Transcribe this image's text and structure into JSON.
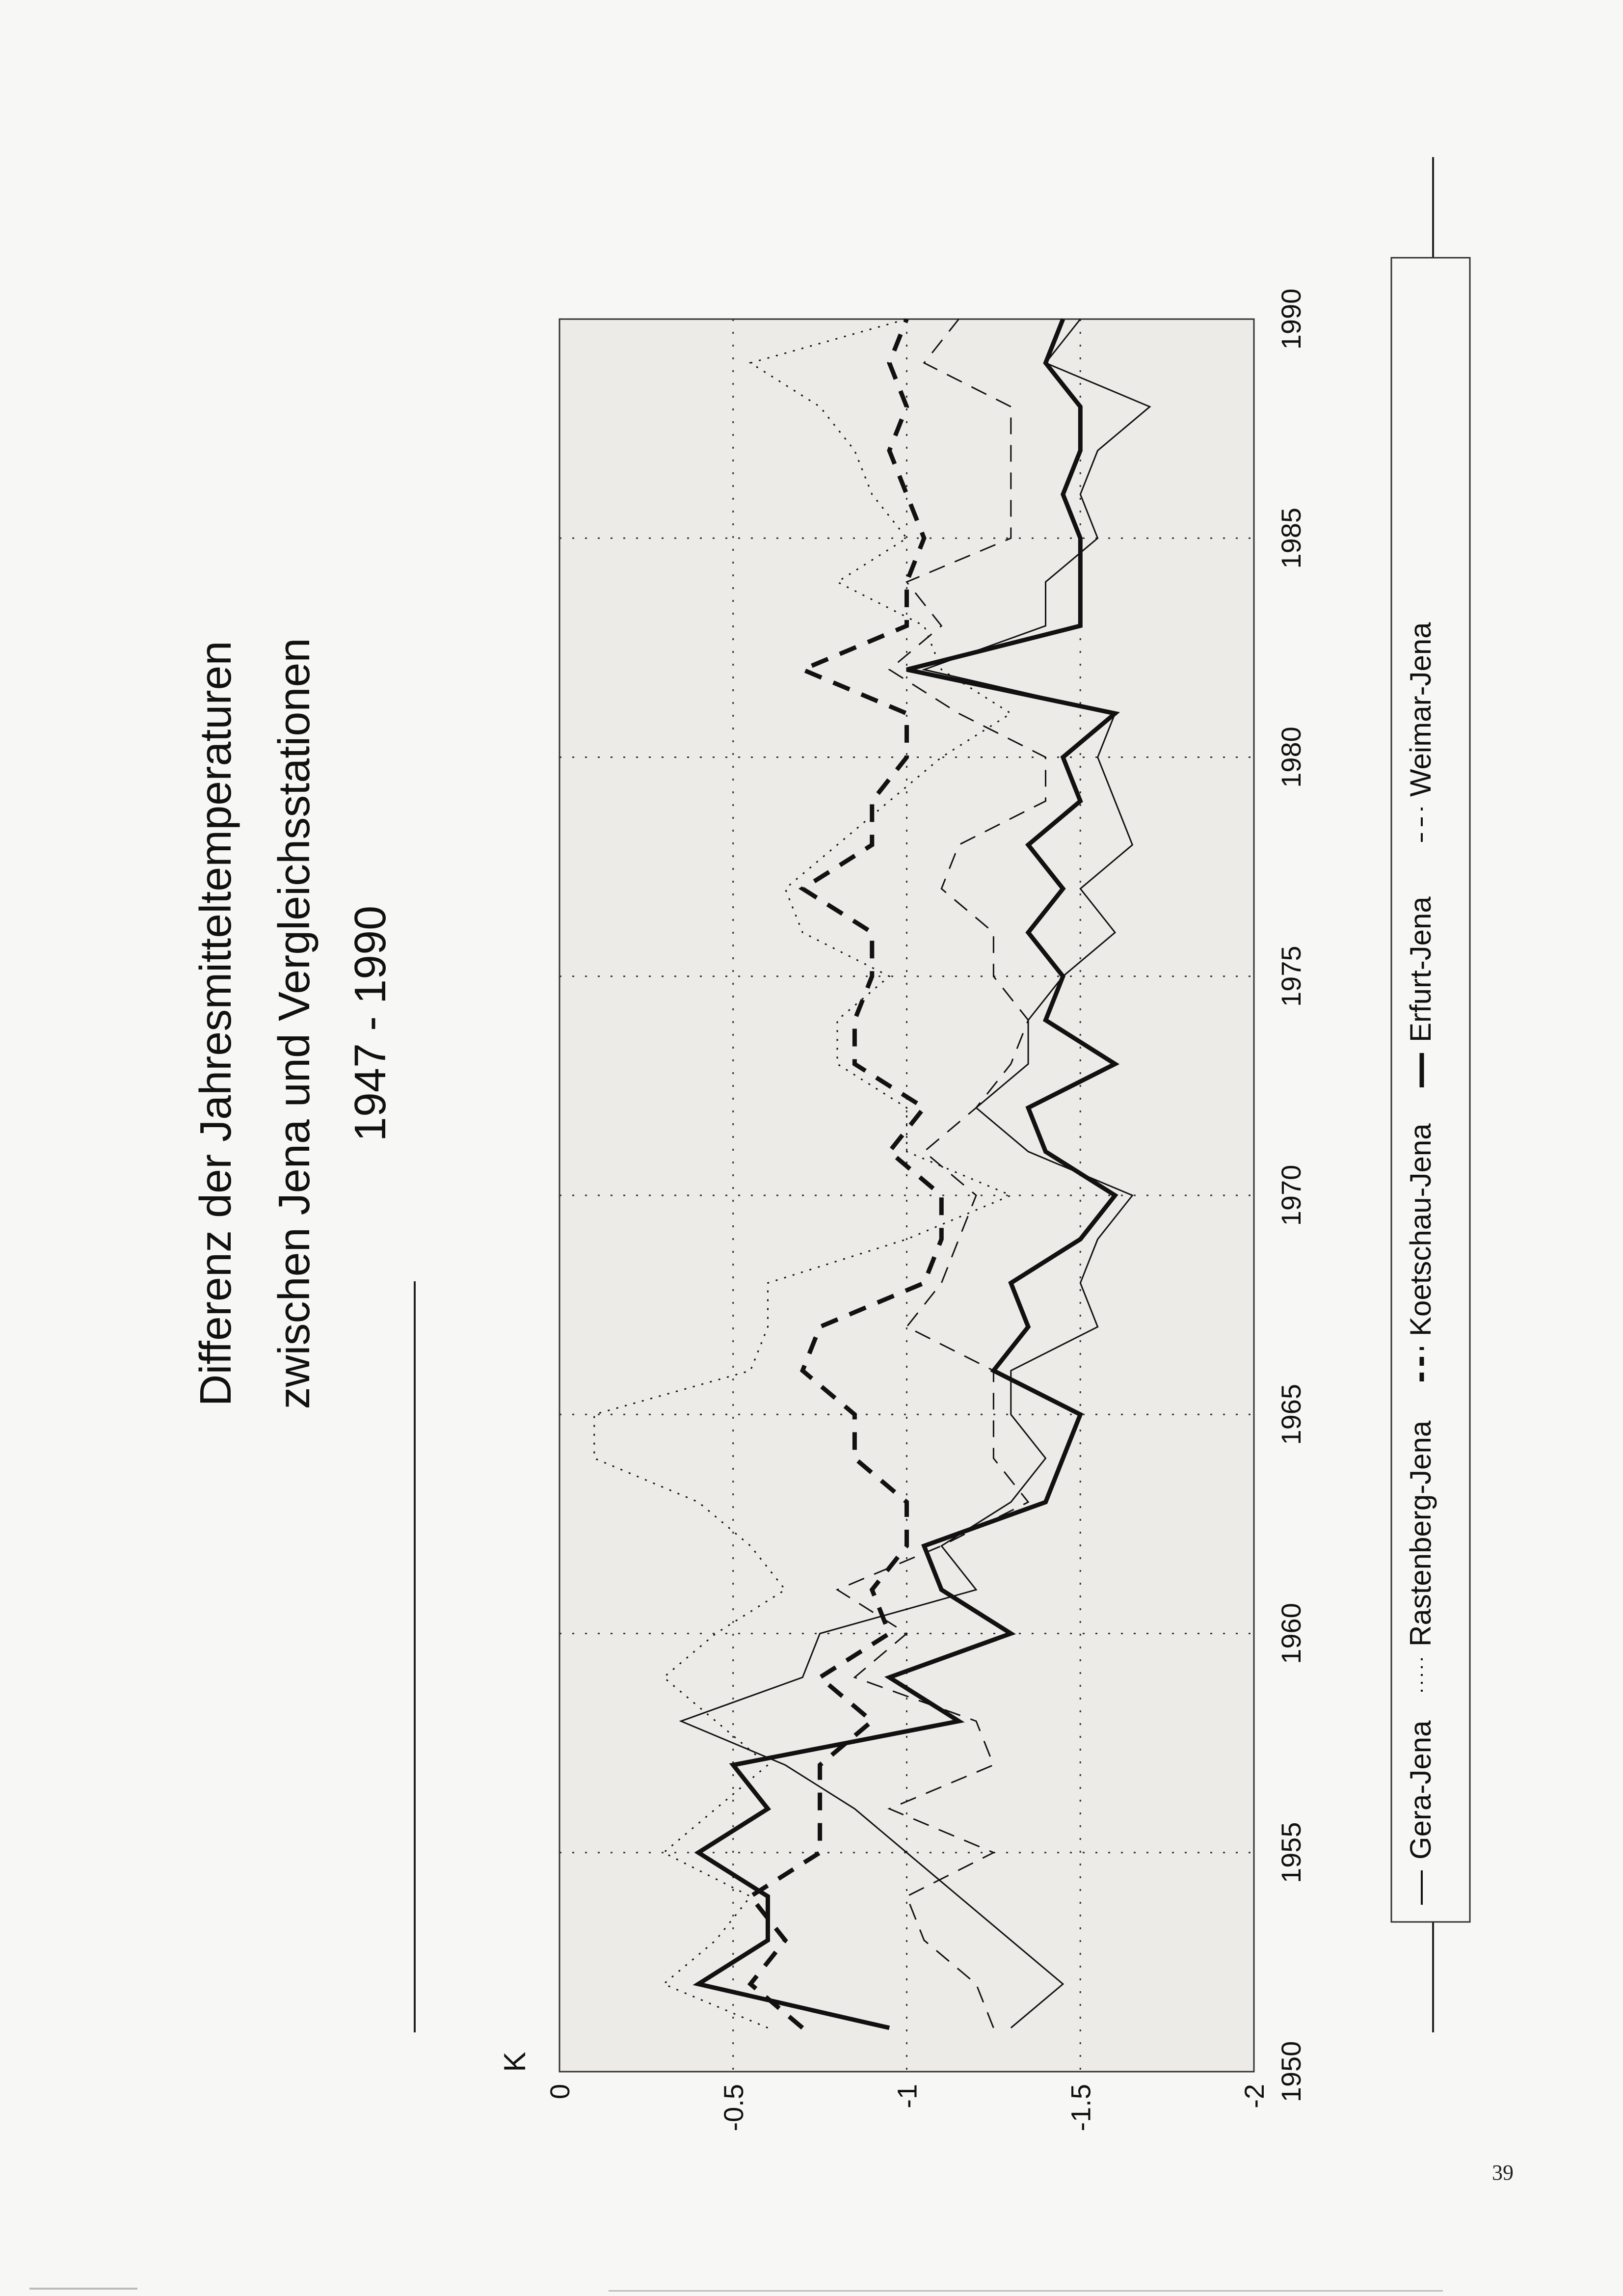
{
  "page": {
    "number": "39"
  },
  "chart_data": {
    "type": "line",
    "orientation": "rotated-90-ccw",
    "title_lines": [
      "Differenz der Jahresmitteltemperaturen",
      "zwischen Jena und Vergleichsstationen",
      "1947 - 1990"
    ],
    "ylabel": "K",
    "xlim": [
      1950,
      1990
    ],
    "ylim": [
      -2,
      0
    ],
    "x_ticks": [
      "1950",
      "1955",
      "1960",
      "1965",
      "1970",
      "1975",
      "1980",
      "1985",
      "1990"
    ],
    "y_ticks": [
      "0",
      "-0.5",
      "-1",
      "-1.5",
      "-2"
    ],
    "grid": "dotted",
    "legend_position": "bottom",
    "series": [
      {
        "name": "Gera-Jena",
        "style": "solid-thin",
        "x": [
          1951,
          1952,
          1953,
          1954,
          1955,
          1956,
          1957,
          1958,
          1959,
          1960,
          1961,
          1962,
          1963,
          1964,
          1965,
          1966,
          1967,
          1968,
          1969,
          1970,
          1971,
          1972,
          1973,
          1974,
          1975,
          1976,
          1977,
          1978,
          1979,
          1980,
          1981,
          1982,
          1983,
          1984,
          1985,
          1986,
          1987,
          1988,
          1989,
          1990
        ],
        "values": [
          -1.3,
          -1.45,
          -1.3,
          -1.15,
          -1.0,
          -0.85,
          -0.65,
          -0.35,
          -0.7,
          -0.75,
          -1.2,
          -1.1,
          -1.3,
          -1.4,
          -1.3,
          -1.3,
          -1.55,
          -1.5,
          -1.55,
          -1.65,
          -1.35,
          -1.2,
          -1.35,
          -1.35,
          -1.45,
          -1.6,
          -1.5,
          -1.65,
          -1.6,
          -1.55,
          -1.6,
          -1.05,
          -1.4,
          -1.4,
          -1.55,
          -1.5,
          -1.55,
          -1.7,
          -1.4,
          -1.5
        ]
      },
      {
        "name": "Rastenberg-Jena",
        "style": "dotted",
        "x": [
          1951,
          1952,
          1953,
          1954,
          1955,
          1956,
          1957,
          1958,
          1959,
          1960,
          1961,
          1962,
          1963,
          1964,
          1965,
          1966,
          1967,
          1968,
          1969,
          1970,
          1971,
          1972,
          1973,
          1974,
          1975,
          1976,
          1977,
          1978,
          1979,
          1980,
          1981,
          1982,
          1983,
          1984,
          1985,
          1986,
          1987,
          1988,
          1989,
          1990
        ],
        "values": [
          -0.6,
          -0.3,
          -0.45,
          -0.55,
          -0.3,
          -0.45,
          -0.6,
          -0.45,
          -0.3,
          -0.45,
          -0.65,
          -0.55,
          -0.4,
          -0.1,
          -0.1,
          -0.55,
          -0.6,
          -0.6,
          -1.0,
          -1.3,
          -1.0,
          -1.0,
          -0.8,
          -0.8,
          -0.95,
          -0.7,
          -0.65,
          -0.8,
          -0.95,
          -1.1,
          -1.3,
          -1.1,
          -1.05,
          -0.8,
          -1.0,
          -0.9,
          -0.85,
          -0.75,
          -0.55,
          -1.0
        ]
      },
      {
        "name": "Koetschau-Jena",
        "style": "dashed-bold",
        "x": [
          1951,
          1952,
          1953,
          1954,
          1955,
          1956,
          1957,
          1958,
          1959,
          1960,
          1961,
          1962,
          1963,
          1964,
          1965,
          1966,
          1967,
          1968,
          1969,
          1970,
          1971,
          1972,
          1973,
          1974,
          1975,
          1976,
          1977,
          1978,
          1979,
          1980,
          1981,
          1982,
          1983,
          1984,
          1985,
          1986,
          1987,
          1988,
          1989,
          1990
        ],
        "values": [
          -0.7,
          -0.55,
          -0.65,
          -0.55,
          -0.75,
          -0.75,
          -0.75,
          -0.9,
          -0.75,
          -0.95,
          -0.9,
          -1.0,
          -1.0,
          -0.85,
          -0.85,
          -0.7,
          -0.75,
          -1.05,
          -1.1,
          -1.1,
          -0.95,
          -1.05,
          -0.85,
          -0.85,
          -0.9,
          -0.9,
          -0.7,
          -0.9,
          -0.9,
          -1.0,
          -1.0,
          -0.7,
          -1.0,
          -1.0,
          -1.05,
          -1.0,
          -0.95,
          -1.0,
          -0.95,
          -1.0
        ]
      },
      {
        "name": "Erfurt-Jena",
        "style": "solid-bold",
        "x": [
          1951,
          1952,
          1953,
          1954,
          1955,
          1956,
          1957,
          1958,
          1959,
          1960,
          1961,
          1962,
          1963,
          1964,
          1965,
          1966,
          1967,
          1968,
          1969,
          1970,
          1971,
          1972,
          1973,
          1974,
          1975,
          1976,
          1977,
          1978,
          1979,
          1980,
          1981,
          1982,
          1983,
          1984,
          1985,
          1986,
          1987,
          1988,
          1989,
          1990
        ],
        "values": [
          -0.95,
          -0.4,
          -0.6,
          -0.6,
          -0.4,
          -0.6,
          -0.5,
          -1.15,
          -0.95,
          -1.3,
          -1.1,
          -1.05,
          -1.4,
          -1.45,
          -1.5,
          -1.25,
          -1.35,
          -1.3,
          -1.5,
          -1.6,
          -1.4,
          -1.35,
          -1.6,
          -1.4,
          -1.45,
          -1.35,
          -1.45,
          -1.35,
          -1.5,
          -1.45,
          -1.6,
          -1.0,
          -1.5,
          -1.5,
          -1.5,
          -1.45,
          -1.5,
          -1.5,
          -1.4,
          -1.45
        ]
      },
      {
        "name": "Weimar-Jena",
        "style": "dashed-thin",
        "x": [
          1951,
          1952,
          1953,
          1954,
          1955,
          1956,
          1957,
          1958,
          1959,
          1960,
          1961,
          1962,
          1963,
          1964,
          1965,
          1966,
          1967,
          1968,
          1969,
          1970,
          1971,
          1972,
          1973,
          1974,
          1975,
          1976,
          1977,
          1978,
          1979,
          1980,
          1981,
          1982,
          1983,
          1984,
          1985,
          1986,
          1987,
          1988,
          1989,
          1990
        ],
        "values": [
          -1.25,
          -1.2,
          -1.05,
          -1.0,
          -1.25,
          -0.95,
          -1.25,
          -1.2,
          -0.85,
          -1.0,
          -0.8,
          -1.1,
          -1.35,
          -1.25,
          -1.25,
          -1.25,
          -1.0,
          -1.1,
          -1.15,
          -1.2,
          -1.05,
          -1.2,
          -1.3,
          -1.35,
          -1.25,
          -1.25,
          -1.1,
          -1.15,
          -1.4,
          -1.4,
          -1.15,
          -0.95,
          -1.1,
          -1.0,
          -1.3,
          -1.3,
          -1.3,
          -1.3,
          -1.05,
          -1.15
        ]
      }
    ]
  }
}
